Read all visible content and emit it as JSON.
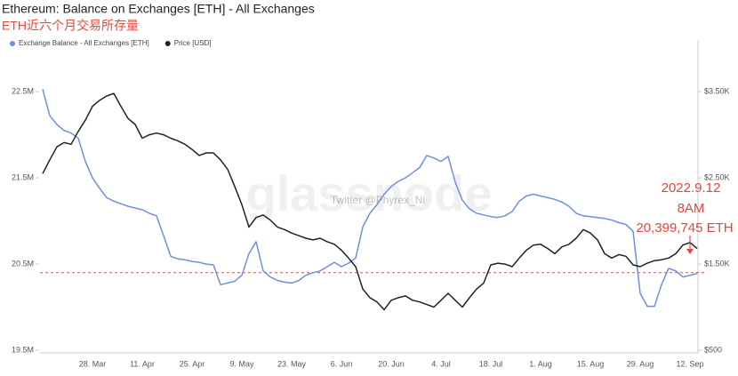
{
  "chart_data": {
    "type": "line",
    "title": "Ethereum: Balance on Exchanges [ETH] - All Exchanges",
    "subtitle": "ETH近六个月交易所存量",
    "watermark": [
      "glassnode",
      "Twitter @Phyrex_Ni"
    ],
    "categories": [
      null,
      null,
      null,
      null,
      null,
      null,
      null,
      "28. Mar",
      null,
      null,
      null,
      null,
      null,
      null,
      "11. Apr",
      null,
      null,
      null,
      null,
      null,
      null,
      "25. Apr",
      null,
      null,
      null,
      null,
      null,
      null,
      "9. May",
      null,
      null,
      null,
      null,
      null,
      null,
      "23. May",
      null,
      null,
      null,
      null,
      null,
      null,
      "6. Jun",
      null,
      null,
      null,
      null,
      null,
      null,
      "20. Jun",
      null,
      null,
      null,
      null,
      null,
      null,
      "4. Jul",
      null,
      null,
      null,
      null,
      null,
      null,
      "18. Jul",
      null,
      null,
      null,
      null,
      null,
      null,
      "1. Aug",
      null,
      null,
      null,
      null,
      null,
      null,
      "15. Aug",
      null,
      null,
      null,
      null,
      null,
      null,
      "29. Aug",
      null,
      null,
      null,
      null,
      null,
      null,
      "12. Sep",
      null
    ],
    "series": [
      {
        "name": "Exchange Balance - All Exchanges [ETH]",
        "color": "#6f8fdc",
        "values": [
          22530000,
          22220000,
          22120000,
          22050000,
          22020000,
          21960000,
          21690000,
          21500000,
          21380000,
          21270000,
          21230000,
          21200000,
          21170000,
          21150000,
          21130000,
          21090000,
          21060000,
          20830000,
          20590000,
          20560000,
          20550000,
          20530000,
          20520000,
          20500000,
          20490000,
          20260000,
          20280000,
          20300000,
          20370000,
          20620000,
          20760000,
          20420000,
          20350000,
          20310000,
          20290000,
          20280000,
          20310000,
          20370000,
          20400000,
          20420000,
          20470000,
          20520000,
          20470000,
          20510000,
          20570000,
          20930000,
          21090000,
          21190000,
          21310000,
          21400000,
          21460000,
          21500000,
          21560000,
          21620000,
          21760000,
          21730000,
          21690000,
          21750000,
          21450000,
          21240000,
          21140000,
          21090000,
          21070000,
          21050000,
          21040000,
          21060000,
          21110000,
          21230000,
          21290000,
          21310000,
          21290000,
          21270000,
          21250000,
          21220000,
          21170000,
          21090000,
          21060000,
          21050000,
          21040000,
          21030000,
          21010000,
          20980000,
          20960000,
          20880000,
          20160000,
          20010000,
          20010000,
          20260000,
          20450000,
          20420000,
          20350000,
          20370000,
          20390000
        ]
      },
      {
        "name": "Price [USD]",
        "color": "#222222",
        "axis": "y2",
        "values": [
          2550,
          2710,
          2860,
          2910,
          2890,
          3040,
          3170,
          3330,
          3400,
          3450,
          3480,
          3330,
          3190,
          3120,
          2960,
          3000,
          3020,
          3000,
          2960,
          2930,
          2890,
          2830,
          2760,
          2790,
          2790,
          2710,
          2600,
          2400,
          2190,
          1930,
          2040,
          2070,
          2010,
          1930,
          1900,
          1860,
          1830,
          1800,
          1780,
          1800,
          1760,
          1730,
          1660,
          1570,
          1470,
          1210,
          1110,
          1060,
          970,
          1080,
          1110,
          1130,
          1080,
          1060,
          1030,
          1000,
          1080,
          1160,
          1080,
          1000,
          1110,
          1210,
          1280,
          1490,
          1510,
          1500,
          1470,
          1570,
          1660,
          1720,
          1730,
          1680,
          1620,
          1700,
          1730,
          1800,
          1900,
          1860,
          1780,
          1620,
          1570,
          1610,
          1590,
          1490,
          1470,
          1510,
          1540,
          1550,
          1570,
          1620,
          1720,
          1750,
          1680
        ]
      }
    ],
    "ylim": [
      19500000,
      23100000
    ],
    "yticks": [
      {
        "value": 19500000,
        "label": "19.5M"
      },
      {
        "value": 20500000,
        "label": "20.5M"
      },
      {
        "value": 21500000,
        "label": "21.5M"
      },
      {
        "value": 22500000,
        "label": "22.5M"
      }
    ],
    "y2lim": [
      500,
      4100
    ],
    "y2ticks": [
      {
        "value": 500,
        "label": "$500"
      },
      {
        "value": 1500,
        "label": "$1.50K"
      },
      {
        "value": 2500,
        "label": "$2.50K"
      },
      {
        "value": 3500,
        "label": "$3.50K"
      }
    ],
    "reference_line": {
      "value": 20399745,
      "color": "#e8453c"
    },
    "annotations": [
      "2022.9.12",
      "8AM",
      "20,399,745 ETH"
    ],
    "annotation_color": "#e8453c",
    "grid": false
  }
}
